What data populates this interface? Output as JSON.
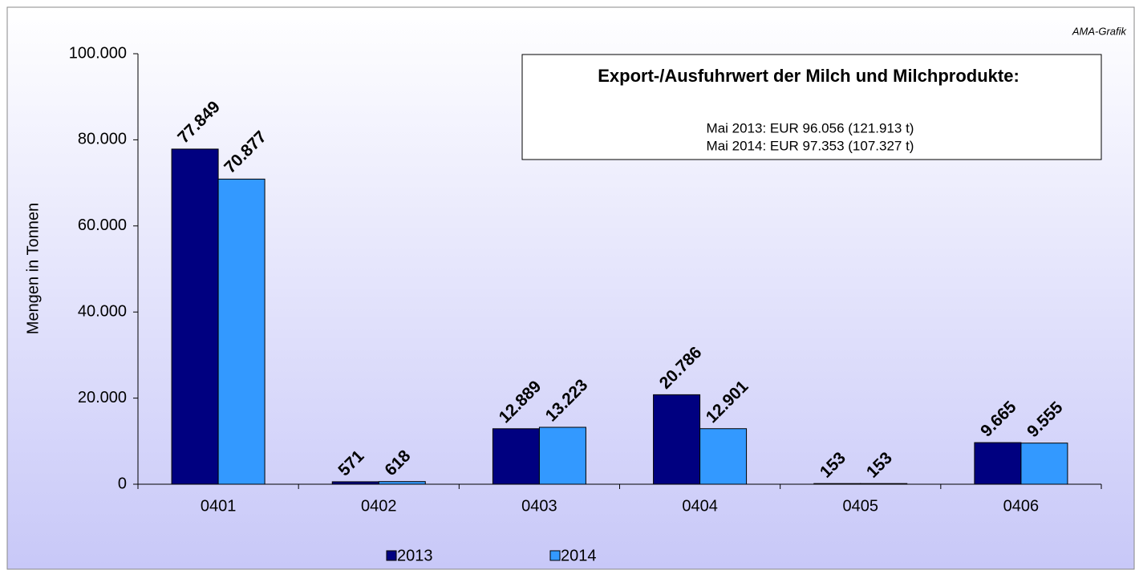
{
  "chart_data": {
    "type": "bar",
    "source": "AMA-Grafik",
    "ylabel": "Mengen in Tonnen",
    "categories": [
      "0401",
      "0402",
      "0403",
      "0404",
      "0405",
      "0406"
    ],
    "series": [
      {
        "name": "2013",
        "color": "#000080",
        "values": [
          77849,
          571,
          12889,
          20786,
          153,
          9665
        ],
        "value_labels": [
          "77.849",
          "571",
          "12.889",
          "20.786",
          "153",
          "9.665"
        ]
      },
      {
        "name": "2014",
        "color": "#3399ff",
        "values": [
          70877,
          618,
          13223,
          12901,
          153,
          9555
        ],
        "value_labels": [
          "70.877",
          "618",
          "13.223",
          "12.901",
          "153",
          "9.555"
        ]
      }
    ],
    "ylim": [
      0,
      100000
    ],
    "yticks": [
      {
        "value": 0,
        "label": "0"
      },
      {
        "value": 20000,
        "label": "20.000"
      },
      {
        "value": 40000,
        "label": "40.000"
      },
      {
        "value": 60000,
        "label": "60.000"
      },
      {
        "value": 80000,
        "label": "80.000"
      },
      {
        "value": 100000,
        "label": "100.000"
      }
    ],
    "legend": "bottom",
    "annotation": {
      "title": "Export-/Ausfuhrwert der Milch und Milchprodukte:",
      "lines": [
        "Mai 2013: EUR 96.056 (121.913 t)",
        "Mai 2014: EUR 97.353 (107.327 t)"
      ]
    }
  }
}
